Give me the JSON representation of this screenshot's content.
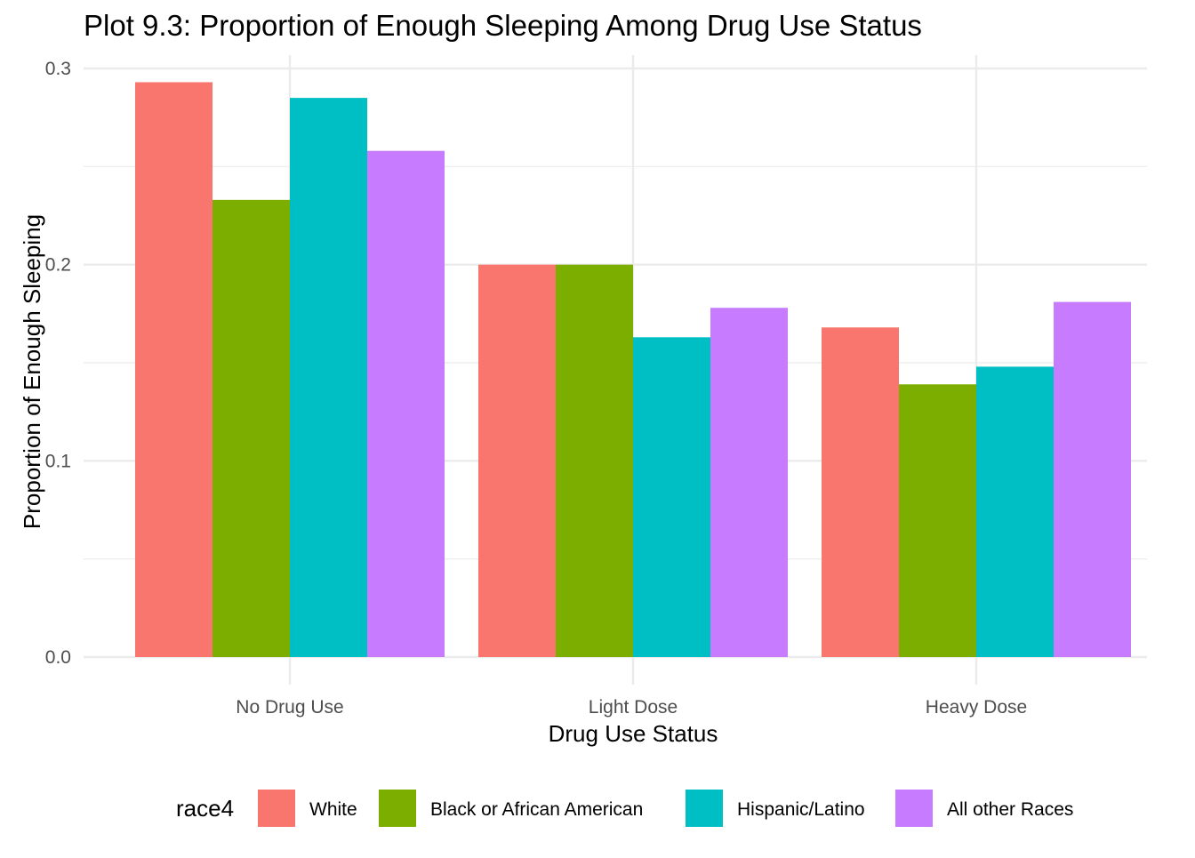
{
  "chart_data": {
    "type": "bar",
    "title": "Plot 9.3: Proportion of Enough Sleeping Among Drug Use Status",
    "xlabel": "Drug Use Status",
    "ylabel": "Proportion of Enough Sleeping",
    "categories": [
      "No Drug Use",
      "Light Dose",
      "Heavy Dose"
    ],
    "series": [
      {
        "name": "White",
        "color": "#F8766D",
        "values": [
          0.293,
          0.2,
          0.168
        ]
      },
      {
        "name": "Black or African American",
        "color": "#7CAE00",
        "values": [
          0.233,
          0.2,
          0.139
        ]
      },
      {
        "name": "Hispanic/Latino",
        "color": "#00BFC4",
        "values": [
          0.285,
          0.163,
          0.148
        ]
      },
      {
        "name": "All other Races",
        "color": "#C77CFF",
        "values": [
          0.258,
          0.178,
          0.181
        ]
      }
    ],
    "ylim": [
      0,
      0.3
    ],
    "y_ticks": [
      0.0,
      0.1,
      0.2,
      0.3
    ],
    "y_tick_labels": [
      "0.0",
      "0.1",
      "0.2",
      "0.3"
    ],
    "grid": true,
    "legend": {
      "title": "race4",
      "position": "bottom"
    }
  }
}
